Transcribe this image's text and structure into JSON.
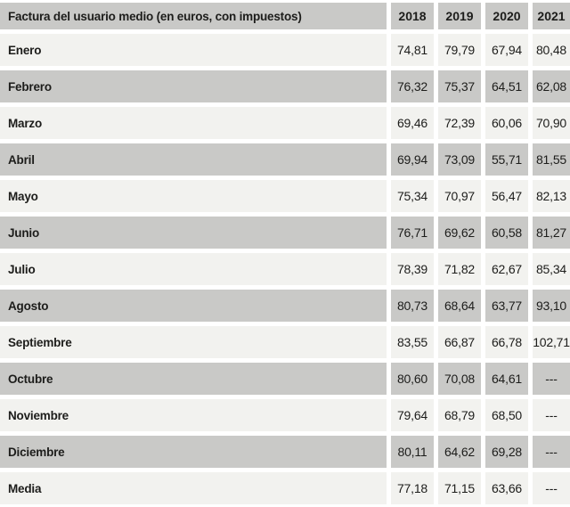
{
  "colors": {
    "band_gray": "#c9c9c7",
    "band_light": "#f2f2ef",
    "gap_white": "#ffffff",
    "text": "#1d1d1b"
  },
  "table": {
    "title_label": "Factura del usuario medio (en euros, con impuestos)",
    "years": [
      "2018",
      "2019",
      "2020",
      "2021"
    ],
    "no_data_marker": "---",
    "rows": [
      {
        "label": "Enero",
        "values": [
          "74,81",
          "79,79",
          "67,94",
          "80,48"
        ]
      },
      {
        "label": "Febrero",
        "values": [
          "76,32",
          "75,37",
          "64,51",
          "62,08"
        ]
      },
      {
        "label": "Marzo",
        "values": [
          "69,46",
          "72,39",
          "60,06",
          "70,90"
        ]
      },
      {
        "label": "Abril",
        "values": [
          "69,94",
          "73,09",
          "55,71",
          "81,55"
        ]
      },
      {
        "label": "Mayo",
        "values": [
          "75,34",
          "70,97",
          "56,47",
          "82,13"
        ]
      },
      {
        "label": "Junio",
        "values": [
          "76,71",
          "69,62",
          "60,58",
          "81,27"
        ]
      },
      {
        "label": "Julio",
        "values": [
          "78,39",
          "71,82",
          "62,67",
          "85,34"
        ]
      },
      {
        "label": "Agosto",
        "values": [
          "80,73",
          "68,64",
          "63,77",
          "93,10"
        ]
      },
      {
        "label": "Septiembre",
        "values": [
          "83,55",
          "66,87",
          "66,78",
          "102,71"
        ]
      },
      {
        "label": "Octubre",
        "values": [
          "80,60",
          "70,08",
          "64,61",
          "---"
        ]
      },
      {
        "label": "Noviembre",
        "values": [
          "79,64",
          "68,79",
          "68,50",
          "---"
        ]
      },
      {
        "label": "Diciembre",
        "values": [
          "80,11",
          "64,62",
          "69,28",
          "---"
        ]
      },
      {
        "label": "Media",
        "values": [
          "77,18",
          "71,15",
          "63,66",
          "---"
        ]
      }
    ]
  },
  "chart_data": {
    "type": "table",
    "title": "Factura del usuario medio (en euros, con impuestos)",
    "columns": [
      "2018",
      "2019",
      "2020",
      "2021"
    ],
    "row_labels": [
      "Enero",
      "Febrero",
      "Marzo",
      "Abril",
      "Mayo",
      "Junio",
      "Julio",
      "Agosto",
      "Septiembre",
      "Octubre",
      "Noviembre",
      "Diciembre",
      "Media"
    ],
    "values": [
      [
        74.81,
        79.79,
        67.94,
        80.48
      ],
      [
        76.32,
        75.37,
        64.51,
        62.08
      ],
      [
        69.46,
        72.39,
        60.06,
        70.9
      ],
      [
        69.94,
        73.09,
        55.71,
        81.55
      ],
      [
        75.34,
        70.97,
        56.47,
        82.13
      ],
      [
        76.71,
        69.62,
        60.58,
        81.27
      ],
      [
        78.39,
        71.82,
        62.67,
        85.34
      ],
      [
        80.73,
        68.64,
        63.77,
        93.1
      ],
      [
        83.55,
        66.87,
        66.78,
        102.71
      ],
      [
        80.6,
        70.08,
        64.61,
        null
      ],
      [
        79.64,
        68.79,
        68.5,
        null
      ],
      [
        80.11,
        64.62,
        69.28,
        null
      ],
      [
        77.18,
        71.15,
        63.66,
        null
      ]
    ],
    "notes": "null = no data, shown as --- in the table; decimal comma used in display; alternating gray band rows"
  }
}
